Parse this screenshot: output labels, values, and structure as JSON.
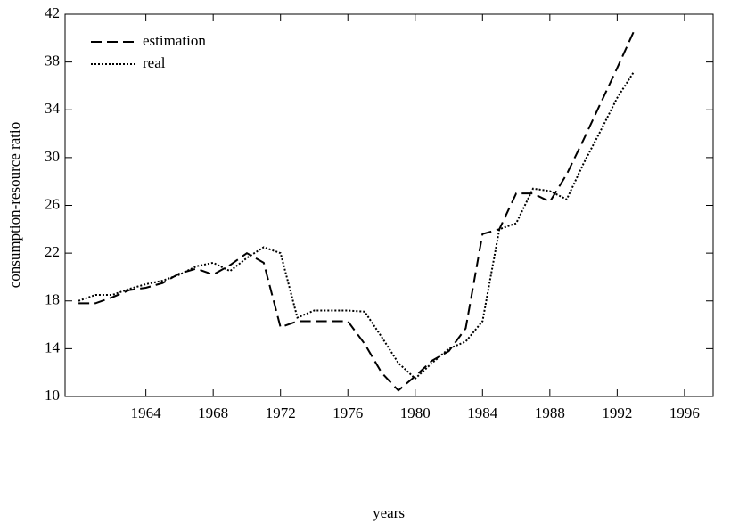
{
  "chart_data": {
    "type": "line",
    "xlabel": "years",
    "ylabel": "consumption-resource ratio",
    "x": [
      1960,
      1961,
      1962,
      1963,
      1964,
      1965,
      1966,
      1967,
      1968,
      1969,
      1970,
      1971,
      1972,
      1973,
      1974,
      1975,
      1976,
      1977,
      1978,
      1979,
      1980,
      1981,
      1982,
      1983,
      1984,
      1985,
      1986,
      1987,
      1988,
      1989,
      1990,
      1991,
      1992,
      1993
    ],
    "series": [
      {
        "name": "estimation",
        "color": "#000000",
        "dash": "dashed",
        "values": [
          17.8,
          17.8,
          18.3,
          18.9,
          19.1,
          19.5,
          20.3,
          20.7,
          20.2,
          21.0,
          22.0,
          21.2,
          15.8,
          16.3,
          16.3,
          16.3,
          16.3,
          14.4,
          12.0,
          10.5,
          11.7,
          13.0,
          13.8,
          15.7,
          23.6,
          24.0,
          27.0,
          27.0,
          26.3,
          28.6,
          31.5,
          34.5,
          37.5,
          40.6
        ]
      },
      {
        "name": "real",
        "color": "#000000",
        "dash": "dotted",
        "values": [
          18.0,
          18.5,
          18.5,
          19.0,
          19.4,
          19.7,
          20.2,
          20.9,
          21.2,
          20.5,
          21.6,
          22.5,
          22.0,
          16.6,
          17.2,
          17.2,
          17.2,
          17.1,
          15.0,
          12.8,
          11.5,
          12.8,
          14.0,
          14.6,
          16.3,
          24.0,
          24.5,
          27.4,
          27.2,
          26.5,
          29.5,
          32.2,
          35.0,
          37.2
        ]
      }
    ],
    "xlim": [
      1959.2,
      1997.7
    ],
    "xticks": [
      1964,
      1968,
      1972,
      1976,
      1980,
      1984,
      1988,
      1992,
      1996
    ],
    "ylim": [
      10,
      42
    ],
    "yticks": [
      10,
      14,
      18,
      22,
      26,
      30,
      34,
      38,
      42
    ],
    "legend": "upper left",
    "grid": false
  }
}
